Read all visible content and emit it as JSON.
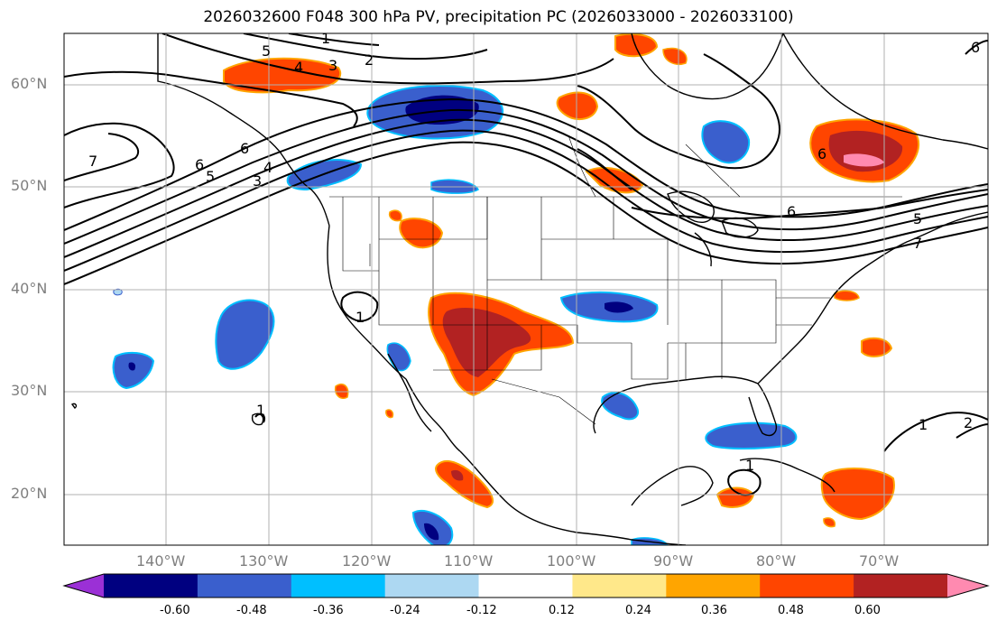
{
  "title": "2026032600 F048 300 hPa PV, precipitation PC (2026033000 - 2026033100)",
  "lat_labels": [
    "60°N",
    "50°N",
    "40°N",
    "30°N",
    "20°N"
  ],
  "lon_labels": [
    "140°W",
    "130°W",
    "120°W",
    "110°W",
    "100°W",
    "90°W",
    "80°W",
    "70°W"
  ],
  "colorbar": {
    "ticks": [
      "-0.60",
      "-0.48",
      "-0.36",
      "-0.24",
      "-0.12",
      "0.12",
      "0.24",
      "0.36",
      "0.48",
      "0.60"
    ],
    "colors": [
      "#9b30d6",
      "#000080",
      "#3a5fcd",
      "#00bfff",
      "#add8f2",
      "#ffffff",
      "#ffe88a",
      "#ffa500",
      "#ff4500",
      "#b22222",
      "#ff8ab0"
    ]
  },
  "contour_labels": [
    "1",
    "2",
    "3",
    "4",
    "5",
    "6",
    "7",
    "3",
    "4",
    "5",
    "6",
    "1",
    "6",
    "5",
    "7",
    "6",
    "1",
    "2",
    "1",
    "1",
    "6"
  ],
  "map_data": {
    "lat_range": [
      15,
      65
    ],
    "lon_range": [
      -150,
      -60
    ],
    "projection": "PlateCarree"
  }
}
